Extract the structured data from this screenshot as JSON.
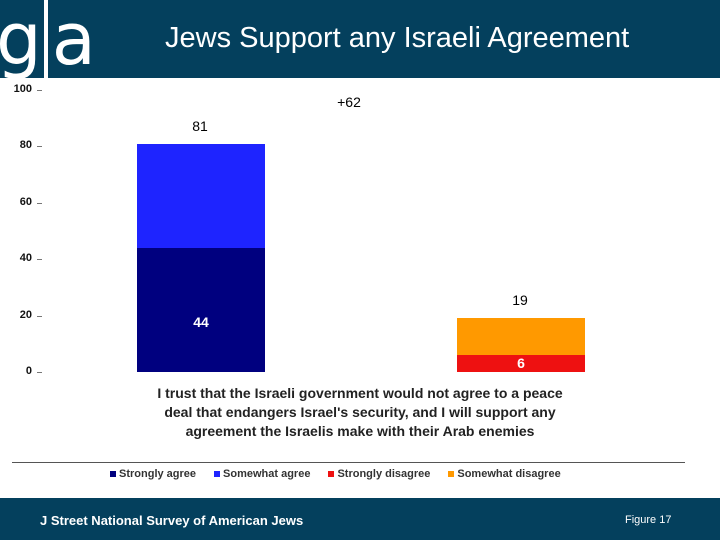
{
  "header": {
    "logo_left": "g",
    "logo_right": "a",
    "title": "Jews Support any Israeli Agreement"
  },
  "chart_data": {
    "type": "bar",
    "stacked": true,
    "title": "Jews Support any Israeli Agreement",
    "ylim": [
      0,
      100
    ],
    "yticks": [
      0,
      20,
      40,
      60,
      80,
      100
    ],
    "grid": false,
    "legend_position": "bottom",
    "categories": [
      "",
      ""
    ],
    "series": [
      {
        "name": "Strongly agree",
        "color": "#00007f",
        "values": [
          44,
          0
        ]
      },
      {
        "name": "Somewhat agree",
        "color": "#1e24ff",
        "values": [
          37,
          0
        ]
      },
      {
        "name": "Strongly disagree",
        "color": "#ee1111",
        "values": [
          0,
          6
        ]
      },
      {
        "name": "Somewhat disagree",
        "color": "#ff9900",
        "values": [
          0,
          13
        ]
      }
    ],
    "totals": [
      81,
      19
    ],
    "segment_labels": [
      {
        "text": "44",
        "bar": 0,
        "series": 0
      },
      {
        "text": "6",
        "bar": 1,
        "series": 2
      }
    ],
    "total_labels": [
      "81",
      "19"
    ],
    "annotation": "+62"
  },
  "caption": {
    "line1": "I trust that the Israeli government would not agree to a peace",
    "line2": "deal that endangers Israel's security, and I will support any",
    "line3": "agreement the Israelis make with their Arab enemies"
  },
  "legend": [
    {
      "label": "Strongly agree",
      "color": "#00007f"
    },
    {
      "label": "Somewhat agree",
      "color": "#1e24ff"
    },
    {
      "label": "Strongly disagree",
      "color": "#ee1111"
    },
    {
      "label": "Somewhat disagree",
      "color": "#ff9900"
    }
  ],
  "footer": {
    "left": "J Street National Survey of American Jews",
    "right": "Figure 17"
  }
}
